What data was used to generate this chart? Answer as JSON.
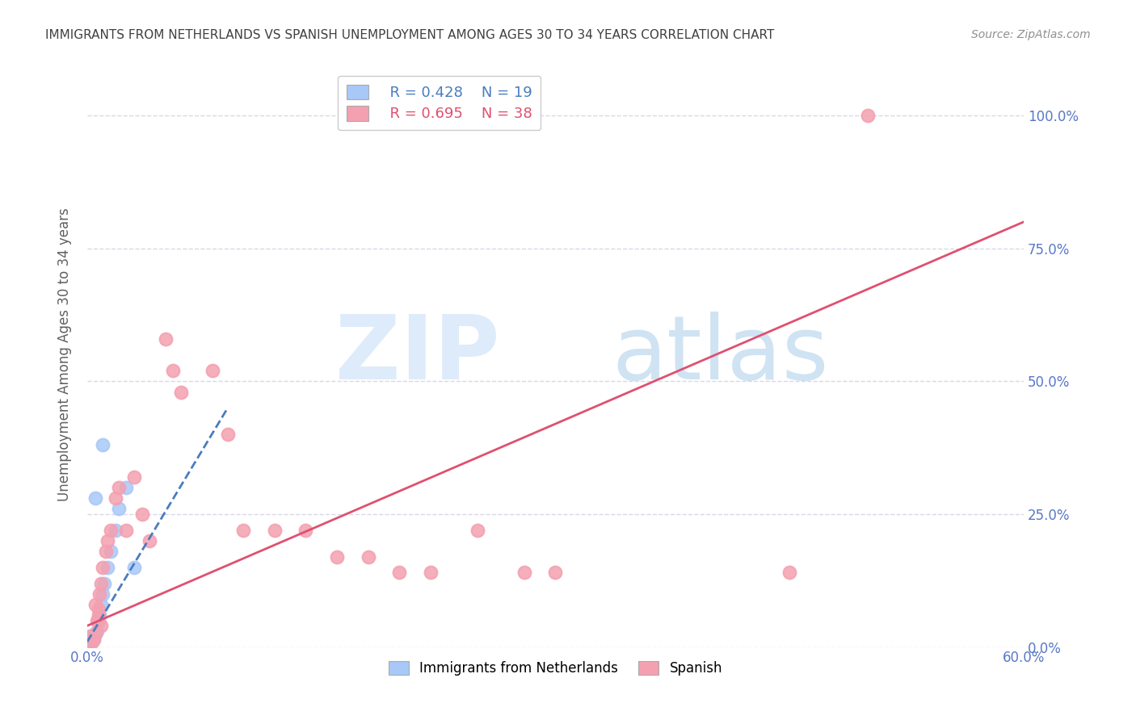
{
  "title": "IMMIGRANTS FROM NETHERLANDS VS SPANISH UNEMPLOYMENT AMONG AGES 30 TO 34 YEARS CORRELATION CHART",
  "source": "Source: ZipAtlas.com",
  "ylabel": "Unemployment Among Ages 30 to 34 years",
  "xlim": [
    0.0,
    0.6
  ],
  "ylim": [
    0.0,
    1.1
  ],
  "yticks": [
    0.0,
    0.25,
    0.5,
    0.75,
    1.0
  ],
  "ytick_labels": [
    "0.0%",
    "25.0%",
    "50.0%",
    "75.0%",
    "100.0%"
  ],
  "xticks": [
    0.0,
    0.1,
    0.2,
    0.3,
    0.4,
    0.5,
    0.6
  ],
  "xtick_labels": [
    "0.0%",
    "",
    "",
    "",
    "",
    "",
    "60.0%"
  ],
  "legend1_R": "0.428",
  "legend1_N": "19",
  "legend2_R": "0.695",
  "legend2_N": "38",
  "blue_color": "#a8c8f8",
  "pink_color": "#f4a0b0",
  "blue_line_color": "#4a7cc0",
  "pink_line_color": "#e05070",
  "watermark_zip": "ZIP",
  "watermark_atlas": "atlas",
  "watermark_color_zip": "#c8dff8",
  "watermark_color_atlas": "#a0c8e8",
  "blue_scatter_x": [
    0.001,
    0.002,
    0.003,
    0.004,
    0.005,
    0.006,
    0.007,
    0.008,
    0.009,
    0.01,
    0.011,
    0.013,
    0.015,
    0.018,
    0.02,
    0.025,
    0.03,
    0.01,
    0.005
  ],
  "blue_scatter_y": [
    0.01,
    0.02,
    0.01,
    0.015,
    0.025,
    0.03,
    0.05,
    0.06,
    0.08,
    0.1,
    0.12,
    0.15,
    0.18,
    0.22,
    0.26,
    0.3,
    0.15,
    0.38,
    0.28
  ],
  "pink_scatter_x": [
    0.002,
    0.003,
    0.004,
    0.005,
    0.006,
    0.007,
    0.008,
    0.009,
    0.01,
    0.012,
    0.013,
    0.015,
    0.018,
    0.02,
    0.025,
    0.03,
    0.035,
    0.04,
    0.05,
    0.055,
    0.06,
    0.08,
    0.09,
    0.1,
    0.12,
    0.14,
    0.16,
    0.18,
    0.2,
    0.22,
    0.25,
    0.28,
    0.3,
    0.45,
    0.5,
    0.005,
    0.007,
    0.009
  ],
  "pink_scatter_y": [
    0.02,
    0.01,
    0.015,
    0.025,
    0.05,
    0.07,
    0.1,
    0.12,
    0.15,
    0.18,
    0.2,
    0.22,
    0.28,
    0.3,
    0.22,
    0.32,
    0.25,
    0.2,
    0.58,
    0.52,
    0.48,
    0.52,
    0.4,
    0.22,
    0.22,
    0.22,
    0.17,
    0.17,
    0.14,
    0.14,
    0.22,
    0.14,
    0.14,
    0.14,
    1.0,
    0.08,
    0.06,
    0.04
  ],
  "blue_trend_x": [
    0.0,
    0.09
  ],
  "blue_trend_y": [
    0.01,
    0.45
  ],
  "pink_trend_x": [
    0.0,
    0.6
  ],
  "pink_trend_y": [
    0.04,
    0.8
  ],
  "axis_label_color": "#5878c8",
  "title_color": "#404040",
  "grid_color": "#d8d8e8",
  "marker_size": 130
}
